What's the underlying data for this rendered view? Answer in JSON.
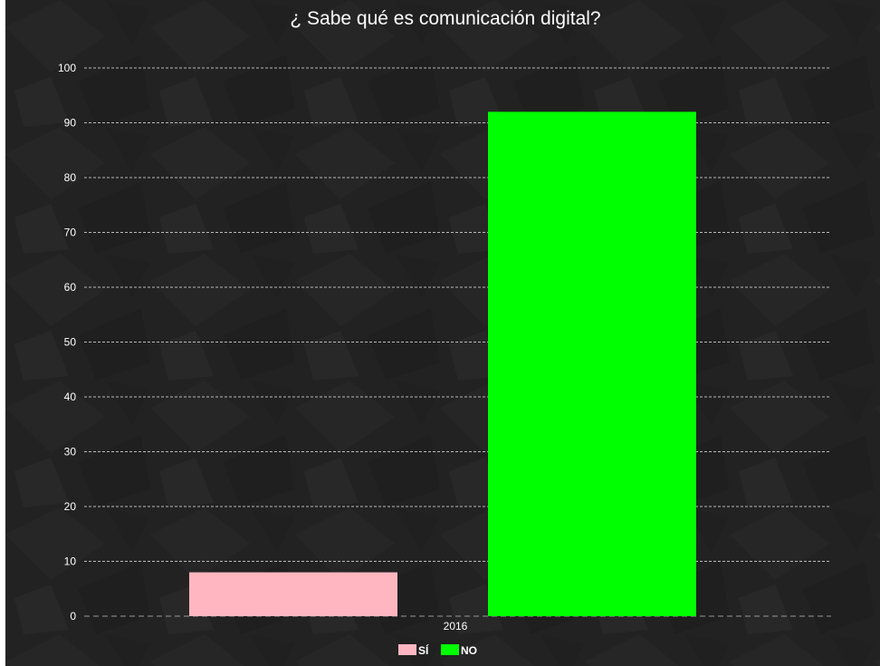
{
  "chart_data": {
    "type": "bar",
    "title": "¿ Sabe qué es comunicación digital?",
    "categories": [
      "2016"
    ],
    "series": [
      {
        "name": "SÍ",
        "values": [
          8
        ],
        "color": "#ffb6c1"
      },
      {
        "name": "NO",
        "values": [
          92
        ],
        "color": "#00ff00"
      }
    ],
    "xlabel": "",
    "ylabel": "",
    "ylim": [
      0,
      100
    ],
    "yticks": [
      0,
      10,
      20,
      30,
      40,
      50,
      60,
      70,
      80,
      90,
      100
    ],
    "grid": true,
    "legend_position": "bottom",
    "background_color": "#222222",
    "text_color": "#ffffff",
    "grid_color": "#bbbbbb"
  }
}
